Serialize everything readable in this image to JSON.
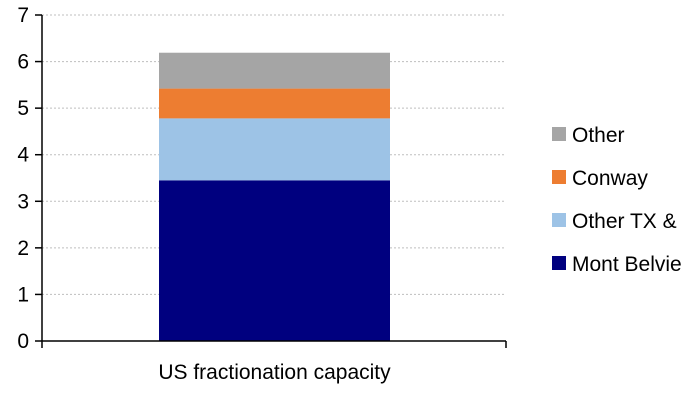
{
  "chart_data": {
    "type": "bar",
    "stacked": true,
    "categories": [
      "US fractionation capacity"
    ],
    "series": [
      {
        "name": "Mont Belvieu",
        "values": [
          3.45
        ],
        "color": "#00007f"
      },
      {
        "name": "Other TX & LA",
        "values": [
          1.33
        ],
        "color": "#9dc3e6"
      },
      {
        "name": "Conway",
        "values": [
          0.64
        ],
        "color": "#ed7d31"
      },
      {
        "name": "Other",
        "values": [
          0.77
        ],
        "color": "#a5a5a5"
      }
    ],
    "legend": {
      "placement": "right",
      "entries": [
        "Other",
        "Conway",
        "Other TX &",
        "Mont Belvie"
      ]
    },
    "ylim": [
      0,
      7
    ],
    "yticks": [
      "0",
      "1",
      "2",
      "3",
      "4",
      "5",
      "6",
      "7"
    ],
    "grid": true,
    "title": "",
    "xlabel": "",
    "ylabel": ""
  }
}
